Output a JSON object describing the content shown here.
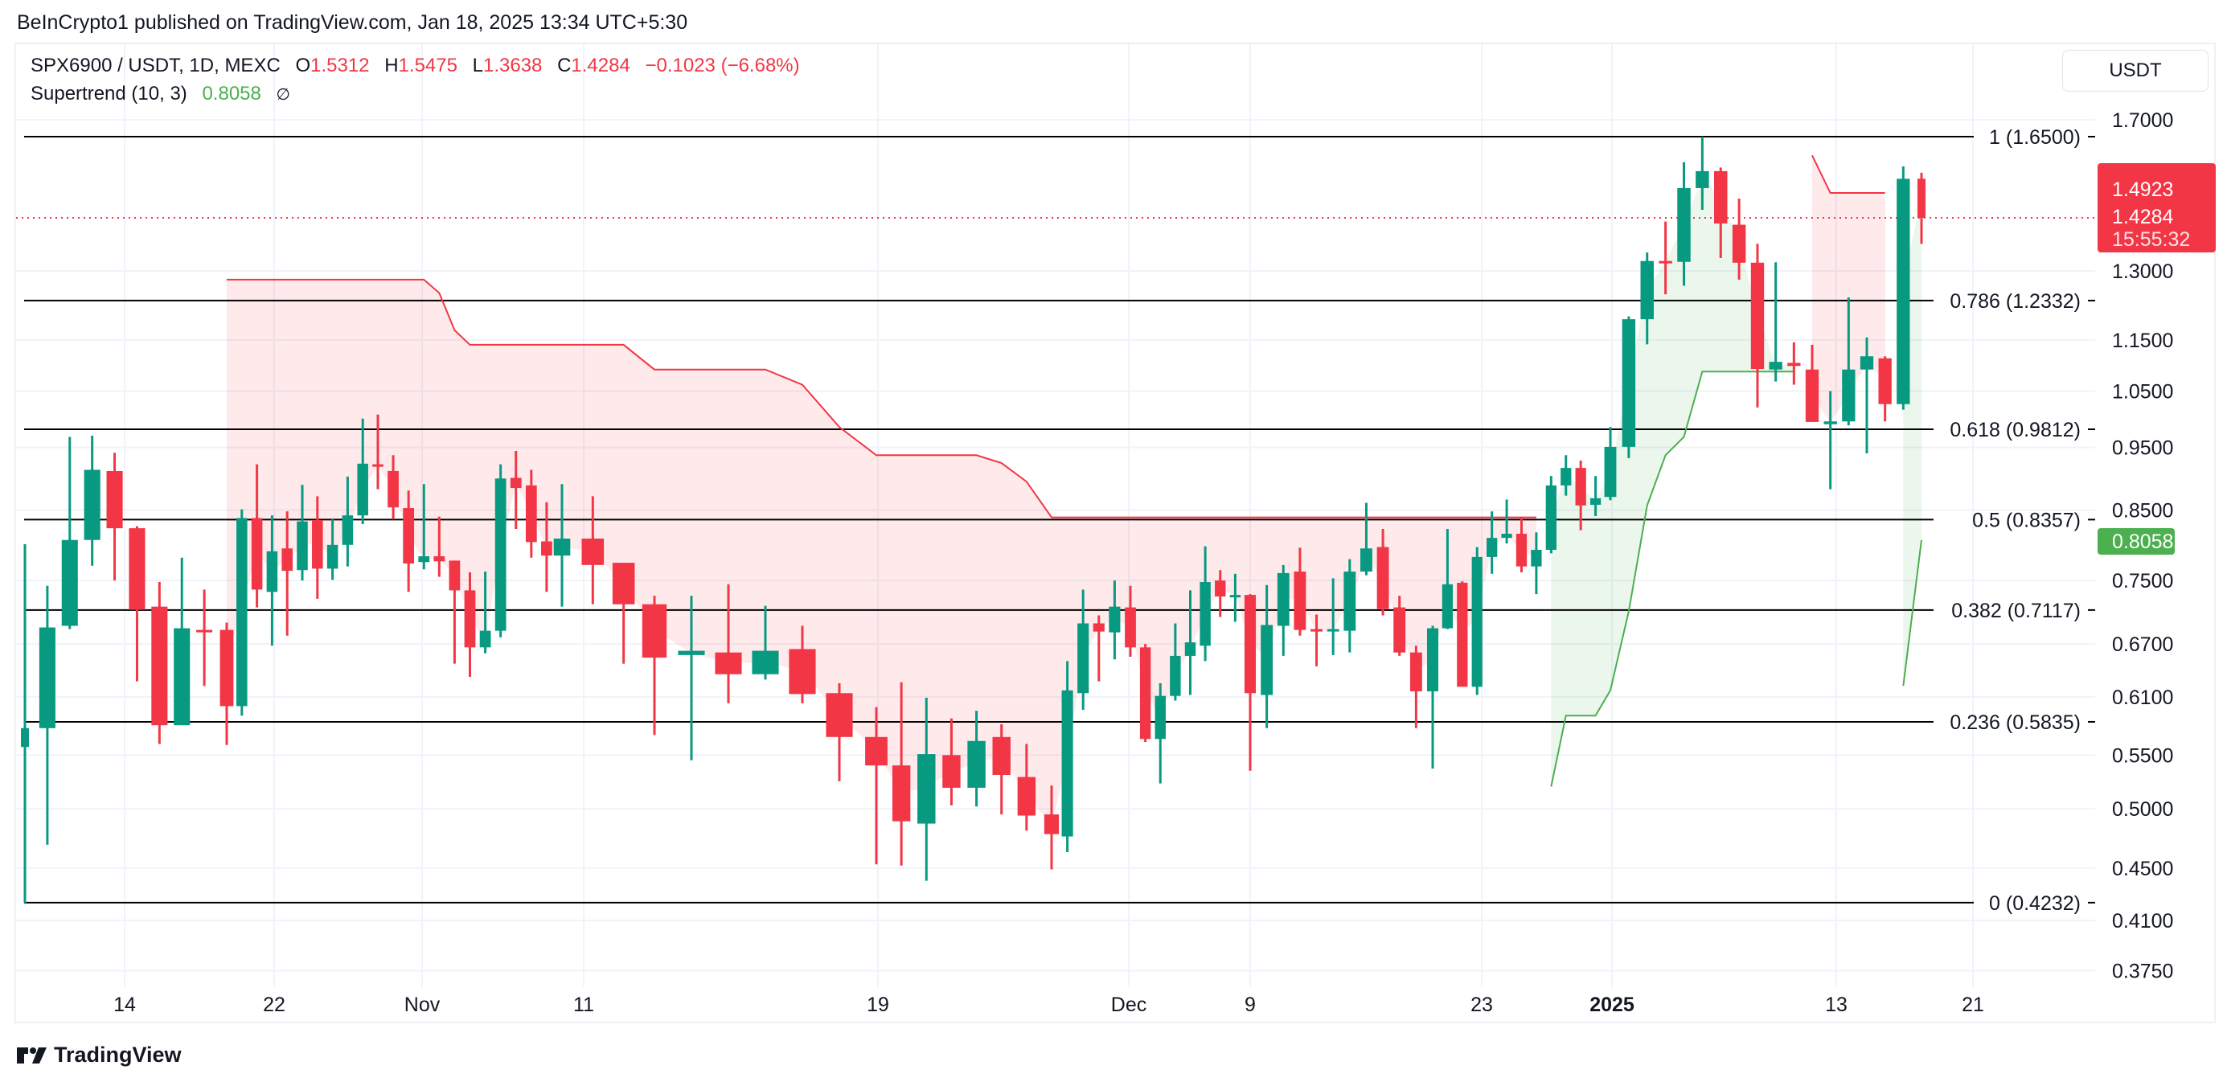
{
  "header": {
    "published": "BeInCrypto1 published on TradingView.com, Jan 18, 2025 13:34 UTC+5:30"
  },
  "legend": {
    "symbol": "SPX6900 / USDT, 1D, MEXC",
    "o_label": "O",
    "o": "1.5312",
    "h_label": "H",
    "h": "1.5475",
    "l_label": "L",
    "l": "1.3638",
    "c_label": "C",
    "c": "1.4284",
    "change": "−0.1023 (−6.68%)",
    "indicator": "Supertrend (10, 3)",
    "indicator_value": "0.8058",
    "indicator_icon": "∅"
  },
  "price_axis": {
    "currency_button": "USDT"
  },
  "markers": {
    "prev_price": "1.4923",
    "last_price": "1.4284",
    "countdown": "15:55:32",
    "supertrend": "0.8058"
  },
  "footer": {
    "brand": "TradingView"
  },
  "colors": {
    "up": "#089981",
    "down": "#f23645",
    "st_up": "#4caf50",
    "st_down": "#f23645"
  },
  "chart_data": {
    "type": "candlestick",
    "symbol": "SPX6900/USDT",
    "interval": "1D",
    "y_scale": "log",
    "ylim": [
      0.36,
      1.78
    ],
    "y_ticks": [
      "1.7000",
      "1.3000",
      "1.1500",
      "1.0500",
      "0.9500",
      "0.8500",
      "0.7500",
      "0.6700",
      "0.6100",
      "0.5500",
      "0.5000",
      "0.4500",
      "0.4100",
      "0.3750"
    ],
    "x_ticks": [
      "14",
      "22",
      "Nov",
      "11",
      "19",
      "Dec",
      "9",
      "23",
      "2025",
      "13",
      "21"
    ],
    "fib_levels": [
      {
        "label": "1 (1.6500)",
        "price": 1.65
      },
      {
        "label": "0.786 (1.2332)",
        "price": 1.2332
      },
      {
        "label": "0.618 (0.9812)",
        "price": 0.9812
      },
      {
        "label": "0.5 (0.8357)",
        "price": 0.8357
      },
      {
        "label": "0.382 (0.7117)",
        "price": 0.7117
      },
      {
        "label": "0.236 (0.5835)",
        "price": 0.5835
      },
      {
        "label": "0 (0.4232)",
        "price": 0.4232
      }
    ],
    "ohlc": [
      [
        0.558,
        0.8,
        0.423,
        0.577
      ],
      [
        0.577,
        0.743,
        0.469,
        0.69
      ],
      [
        0.692,
        0.968,
        0.688,
        0.806
      ],
      [
        0.806,
        0.97,
        0.77,
        0.913
      ],
      [
        0.911,
        0.941,
        0.75,
        0.823
      ],
      [
        0.823,
        0.826,
        0.627,
        0.712
      ],
      [
        0.716,
        0.748,
        0.561,
        0.58
      ],
      [
        0.58,
        0.781,
        0.58,
        0.689
      ],
      [
        0.687,
        0.738,
        0.622,
        0.685
      ],
      [
        0.687,
        0.696,
        0.56,
        0.6
      ],
      [
        0.6,
        0.851,
        0.59,
        0.838
      ],
      [
        0.838,
        0.922,
        0.715,
        0.738
      ],
      [
        0.735,
        0.842,
        0.668,
        0.79
      ],
      [
        0.794,
        0.848,
        0.68,
        0.763
      ],
      [
        0.764,
        0.889,
        0.75,
        0.833
      ],
      [
        0.835,
        0.871,
        0.726,
        0.766
      ],
      [
        0.766,
        0.836,
        0.751,
        0.799
      ],
      [
        0.799,
        0.902,
        0.769,
        0.842
      ],
      [
        0.842,
        1.0,
        0.829,
        0.923
      ],
      [
        0.922,
        1.007,
        0.882,
        0.918
      ],
      [
        0.911,
        0.937,
        0.836,
        0.854
      ],
      [
        0.853,
        0.88,
        0.735,
        0.773
      ],
      [
        0.775,
        0.89,
        0.765,
        0.783
      ],
      [
        0.783,
        0.84,
        0.755,
        0.776
      ],
      [
        0.777,
        0.777,
        0.647,
        0.737
      ],
      [
        0.737,
        0.761,
        0.632,
        0.666
      ],
      [
        0.666,
        0.762,
        0.659,
        0.686
      ],
      [
        0.686,
        0.922,
        0.678,
        0.899
      ],
      [
        0.9,
        0.944,
        0.822,
        0.884
      ],
      [
        0.888,
        0.913,
        0.781,
        0.803
      ],
      [
        0.804,
        0.862,
        0.735,
        0.784
      ],
      [
        0.784,
        0.89,
        0.716,
        0.808
      ],
      [
        0.808,
        0.871,
        0.719,
        0.771
      ],
      [
        0.774,
        0.774,
        0.647,
        0.719
      ],
      [
        0.719,
        0.73,
        0.57,
        0.654
      ],
      [
        0.657,
        0.73,
        0.545,
        0.662
      ],
      [
        0.66,
        0.745,
        0.603,
        0.635
      ],
      [
        0.635,
        0.717,
        0.629,
        0.662
      ],
      [
        0.664,
        0.692,
        0.603,
        0.613
      ],
      [
        0.614,
        0.625,
        0.525,
        0.568
      ],
      [
        0.568,
        0.599,
        0.453,
        0.54
      ],
      [
        0.54,
        0.626,
        0.452,
        0.489
      ],
      [
        0.487,
        0.609,
        0.44,
        0.551
      ],
      [
        0.55,
        0.587,
        0.503,
        0.519
      ],
      [
        0.519,
        0.595,
        0.502,
        0.564
      ],
      [
        0.568,
        0.581,
        0.495,
        0.531
      ],
      [
        0.529,
        0.561,
        0.481,
        0.494
      ],
      [
        0.495,
        0.521,
        0.449,
        0.478
      ],
      [
        0.476,
        0.65,
        0.463,
        0.617
      ],
      [
        0.614,
        0.738,
        0.596,
        0.695
      ],
      [
        0.695,
        0.705,
        0.627,
        0.685
      ],
      [
        0.684,
        0.75,
        0.652,
        0.716
      ],
      [
        0.715,
        0.743,
        0.655,
        0.666
      ],
      [
        0.666,
        0.67,
        0.563,
        0.566
      ],
      [
        0.566,
        0.625,
        0.523,
        0.611
      ],
      [
        0.611,
        0.695,
        0.606,
        0.656
      ],
      [
        0.656,
        0.737,
        0.612,
        0.672
      ],
      [
        0.668,
        0.797,
        0.65,
        0.748
      ],
      [
        0.75,
        0.764,
        0.703,
        0.729
      ],
      [
        0.729,
        0.759,
        0.697,
        0.731
      ],
      [
        0.731,
        0.732,
        0.535,
        0.614
      ],
      [
        0.612,
        0.744,
        0.577,
        0.693
      ],
      [
        0.692,
        0.771,
        0.656,
        0.76
      ],
      [
        0.762,
        0.795,
        0.68,
        0.687
      ],
      [
        0.688,
        0.706,
        0.644,
        0.685
      ],
      [
        0.686,
        0.753,
        0.657,
        0.688
      ],
      [
        0.686,
        0.779,
        0.66,
        0.762
      ],
      [
        0.762,
        0.861,
        0.757,
        0.794
      ],
      [
        0.796,
        0.822,
        0.705,
        0.713
      ],
      [
        0.715,
        0.73,
        0.656,
        0.66
      ],
      [
        0.66,
        0.668,
        0.577,
        0.616
      ],
      [
        0.616,
        0.692,
        0.537,
        0.689
      ],
      [
        0.689,
        0.822,
        0.688,
        0.745
      ],
      [
        0.747,
        0.749,
        0.621,
        0.621
      ],
      [
        0.621,
        0.796,
        0.612,
        0.782
      ],
      [
        0.782,
        0.848,
        0.759,
        0.809
      ],
      [
        0.809,
        0.866,
        0.801,
        0.815
      ],
      [
        0.815,
        0.838,
        0.761,
        0.769
      ],
      [
        0.769,
        0.817,
        0.732,
        0.792
      ],
      [
        0.792,
        0.903,
        0.787,
        0.888
      ],
      [
        0.888,
        0.937,
        0.872,
        0.916
      ],
      [
        0.916,
        0.928,
        0.82,
        0.857
      ],
      [
        0.858,
        0.903,
        0.841,
        0.868
      ],
      [
        0.87,
        0.985,
        0.865,
        0.951
      ],
      [
        0.951,
        1.199,
        0.932,
        1.193
      ],
      [
        1.193,
        1.343,
        1.141,
        1.323
      ],
      [
        1.323,
        1.419,
        1.247,
        1.32
      ],
      [
        1.321,
        1.577,
        1.266,
        1.506
      ],
      [
        1.506,
        1.65,
        1.449,
        1.552
      ],
      [
        1.552,
        1.562,
        1.33,
        1.414
      ],
      [
        1.411,
        1.478,
        1.28,
        1.319
      ],
      [
        1.319,
        1.364,
        1.02,
        1.092
      ],
      [
        1.091,
        1.32,
        1.068,
        1.106
      ],
      [
        1.104,
        1.145,
        1.062,
        1.098
      ],
      [
        1.091,
        1.14,
        0.994,
        0.994
      ],
      [
        0.99,
        1.05,
        0.882,
        0.995
      ],
      [
        0.995,
        1.24,
        0.988,
        1.091
      ],
      [
        1.091,
        1.155,
        0.94,
        1.117
      ],
      [
        1.113,
        1.117,
        0.995,
        1.026
      ],
      [
        1.026,
        1.565,
        1.016,
        1.531
      ],
      [
        1.5312,
        1.5475,
        1.3638,
        1.4284
      ]
    ],
    "supertrend": [
      null,
      null,
      null,
      null,
      null,
      null,
      null,
      null,
      null,
      1.28,
      1.28,
      1.28,
      1.28,
      1.28,
      1.28,
      1.28,
      1.28,
      1.28,
      1.28,
      1.28,
      1.28,
      1.28,
      1.28,
      1.25,
      1.17,
      1.14,
      1.14,
      1.14,
      1.14,
      1.14,
      1.14,
      1.14,
      1.14,
      1.14,
      1.091,
      1.091,
      1.091,
      1.091,
      1.062,
      0.985,
      0.937,
      0.937,
      0.937,
      0.937,
      0.937,
      0.924,
      0.894,
      0.839,
      0.839,
      0.839,
      0.839,
      0.839,
      0.839,
      0.839,
      0.839,
      0.839,
      0.839,
      0.839,
      0.839,
      0.839,
      0.839,
      0.839,
      0.839,
      0.839,
      0.839,
      0.839,
      0.839,
      0.839,
      0.839,
      0.839,
      0.839,
      0.839,
      0.839,
      0.839,
      0.839,
      0.839,
      0.839,
      0.839,
      0.839,
      0.52,
      0.59,
      0.59,
      0.59,
      0.617,
      0.71,
      0.857,
      0.937,
      0.968,
      1.087,
      1.087,
      1.087,
      1.087,
      1.087,
      1.087,
      1.596,
      1.493,
      1.493,
      1.493,
      1.493,
      0.622,
      0.806
    ],
    "supertrend_dir": "down from bar 10 to 79, up 80-94, down 95-99, up 100-101",
    "current_price": 1.4284
  }
}
